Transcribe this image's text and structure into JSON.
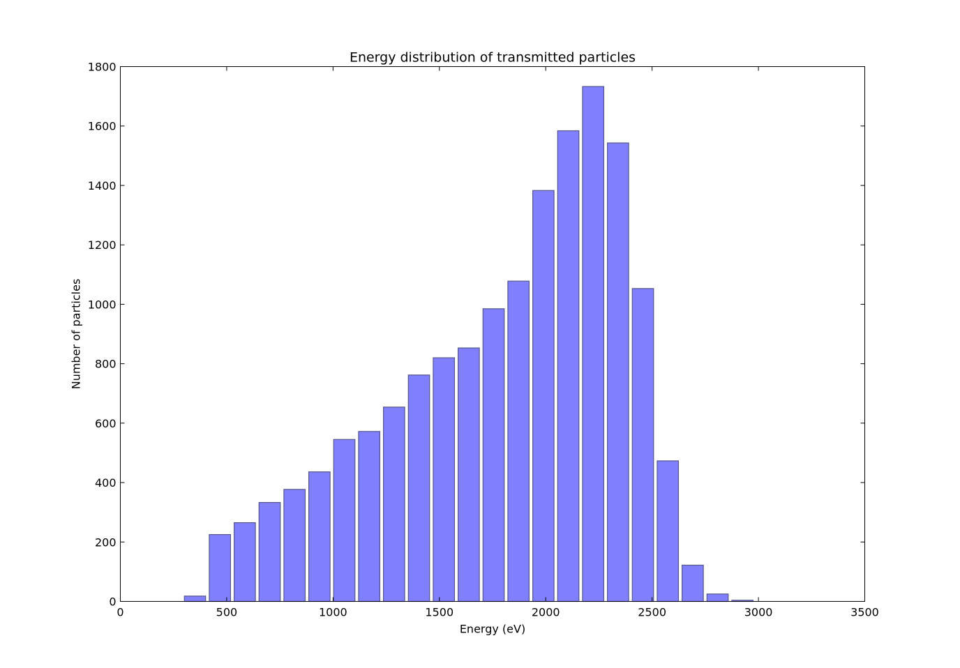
{
  "chart_data": {
    "type": "bar",
    "title": "Energy distribution of transmitted particles",
    "xlabel": "Energy (eV)",
    "ylabel": "Number of particles",
    "xlim": [
      0,
      3500
    ],
    "ylim": [
      0,
      1800
    ],
    "xticks": [
      0,
      500,
      1000,
      1500,
      2000,
      2500,
      3000,
      3500
    ],
    "yticks": [
      0,
      200,
      400,
      600,
      800,
      1000,
      1200,
      1400,
      1600,
      1800
    ],
    "bin_width": 117,
    "bar_width": 100,
    "bars": [
      {
        "x": 351,
        "value": 18
      },
      {
        "x": 468,
        "value": 225
      },
      {
        "x": 585,
        "value": 265
      },
      {
        "x": 702,
        "value": 333
      },
      {
        "x": 819,
        "value": 377
      },
      {
        "x": 936,
        "value": 436
      },
      {
        "x": 1053,
        "value": 545
      },
      {
        "x": 1170,
        "value": 572
      },
      {
        "x": 1287,
        "value": 654
      },
      {
        "x": 1404,
        "value": 762
      },
      {
        "x": 1521,
        "value": 820
      },
      {
        "x": 1638,
        "value": 853
      },
      {
        "x": 1755,
        "value": 985
      },
      {
        "x": 1872,
        "value": 1078
      },
      {
        "x": 1989,
        "value": 1383
      },
      {
        "x": 2106,
        "value": 1584
      },
      {
        "x": 2223,
        "value": 1733
      },
      {
        "x": 2340,
        "value": 1543
      },
      {
        "x": 2457,
        "value": 1053
      },
      {
        "x": 2574,
        "value": 473
      },
      {
        "x": 2691,
        "value": 122
      },
      {
        "x": 2808,
        "value": 25
      },
      {
        "x": 2925,
        "value": 4
      }
    ],
    "bar_color": "#8080ff",
    "bar_edge_color": "#55558a",
    "grid": false,
    "legend": "none"
  }
}
